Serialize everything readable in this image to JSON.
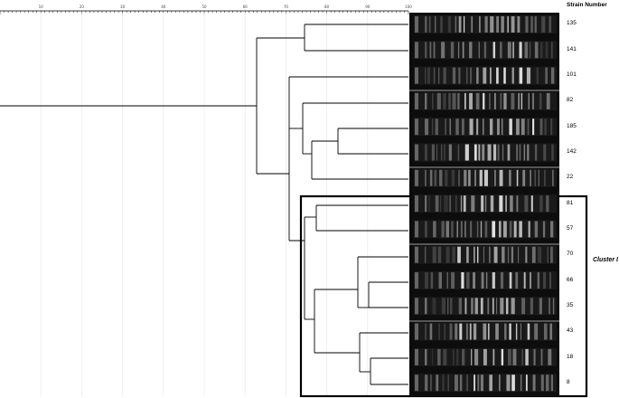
{
  "header": {
    "strain_number_label": "Strain Number"
  },
  "scale": {
    "tick_labels": [
      "10",
      "20",
      "30",
      "40",
      "50",
      "60",
      "70",
      "80",
      "90",
      "100"
    ]
  },
  "strains": [
    "135",
    "141",
    "101",
    "82",
    "185",
    "142",
    "22",
    "81",
    "57",
    "70",
    "66",
    "35",
    "43",
    "18",
    "8"
  ],
  "cluster": {
    "label": "Cluster I"
  },
  "colors": {
    "gel_background": "#0d0d0d",
    "band": "#e8e8e8",
    "line": "#000000"
  }
}
